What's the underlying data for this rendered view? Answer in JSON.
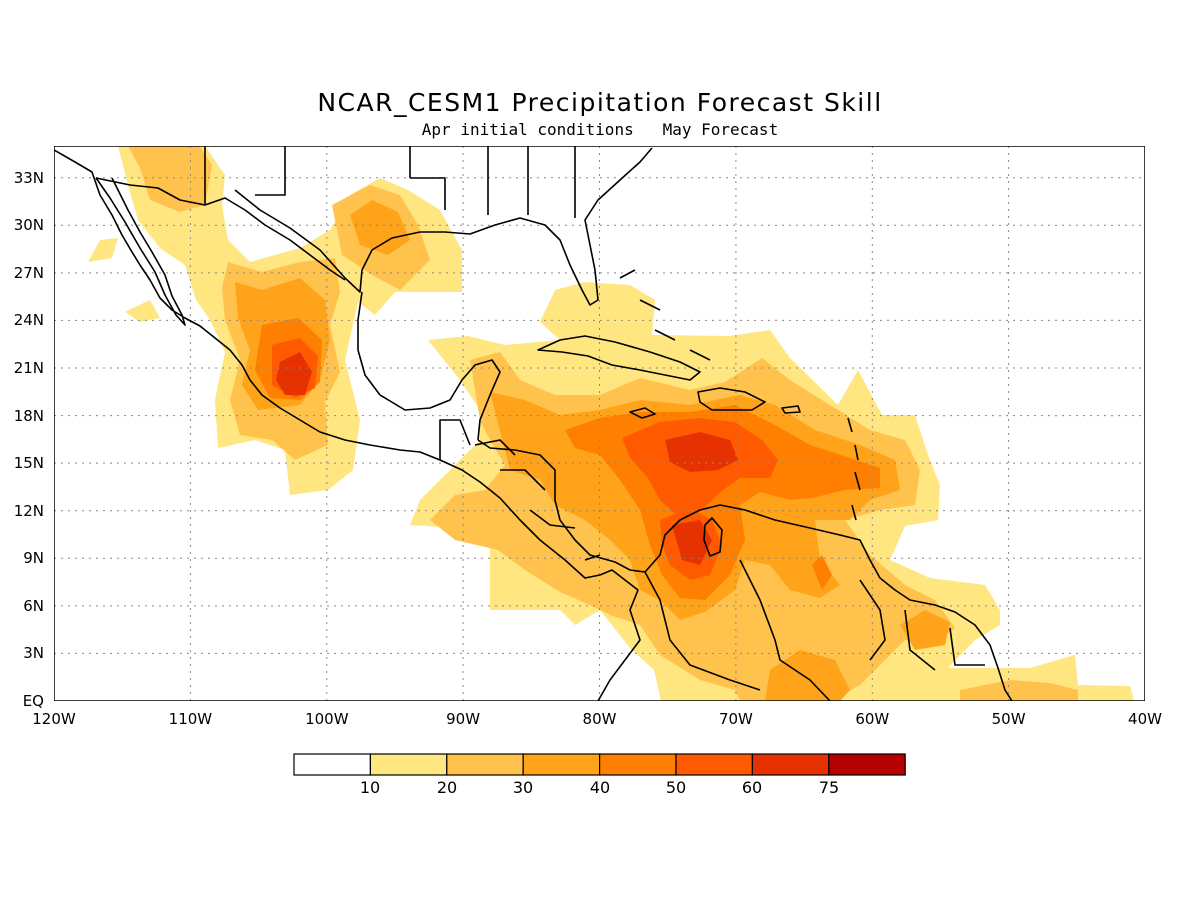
{
  "title": "NCAR_CESM1 Precipitation Forecast Skill",
  "subtitle": "Apr initial conditions   May Forecast",
  "axes": {
    "lon_ticks": [
      "120W",
      "110W",
      "100W",
      "90W",
      "80W",
      "70W",
      "60W",
      "50W",
      "40W"
    ],
    "lat_ticks": [
      "EQ",
      "3N",
      "6N",
      "9N",
      "12N",
      "15N",
      "18N",
      "21N",
      "24N",
      "27N",
      "30N",
      "33N"
    ]
  },
  "colorbar": {
    "labels": [
      "10",
      "20",
      "30",
      "40",
      "50",
      "60",
      "75"
    ],
    "colors": [
      "#ffffff",
      "#ffe680",
      "#ffc34d",
      "#ffa31a",
      "#ff8000",
      "#ff5a00",
      "#e63200",
      "#b50000",
      "#8c0000"
    ]
  },
  "chart_data": {
    "type": "heatmap",
    "title": "NCAR_CESM1 Precipitation Forecast Skill",
    "subtitle": "Apr initial conditions   May Forecast",
    "lon_range": [
      -120,
      -40
    ],
    "lat_range": [
      0,
      35
    ],
    "levels": [
      10,
      20,
      30,
      40,
      50,
      60,
      75
    ],
    "skill_regions": [
      {
        "name": "",
        "lon": -101.5,
        "lat": 20.5,
        "peak": 65
      },
      {
        "name": "",
        "lon": -73,
        "lat": 15.5,
        "peak": 60
      },
      {
        "name": "",
        "lon": -72,
        "lat": 10,
        "peak": 60
      },
      {
        "name": "",
        "lon": -64,
        "lat": 8,
        "peak": 45
      },
      {
        "name": "",
        "lon": -94,
        "lat": 30.5,
        "peak": 40
      },
      {
        "name": "",
        "lon": -110,
        "lat": 34,
        "peak": 30
      }
    ]
  }
}
